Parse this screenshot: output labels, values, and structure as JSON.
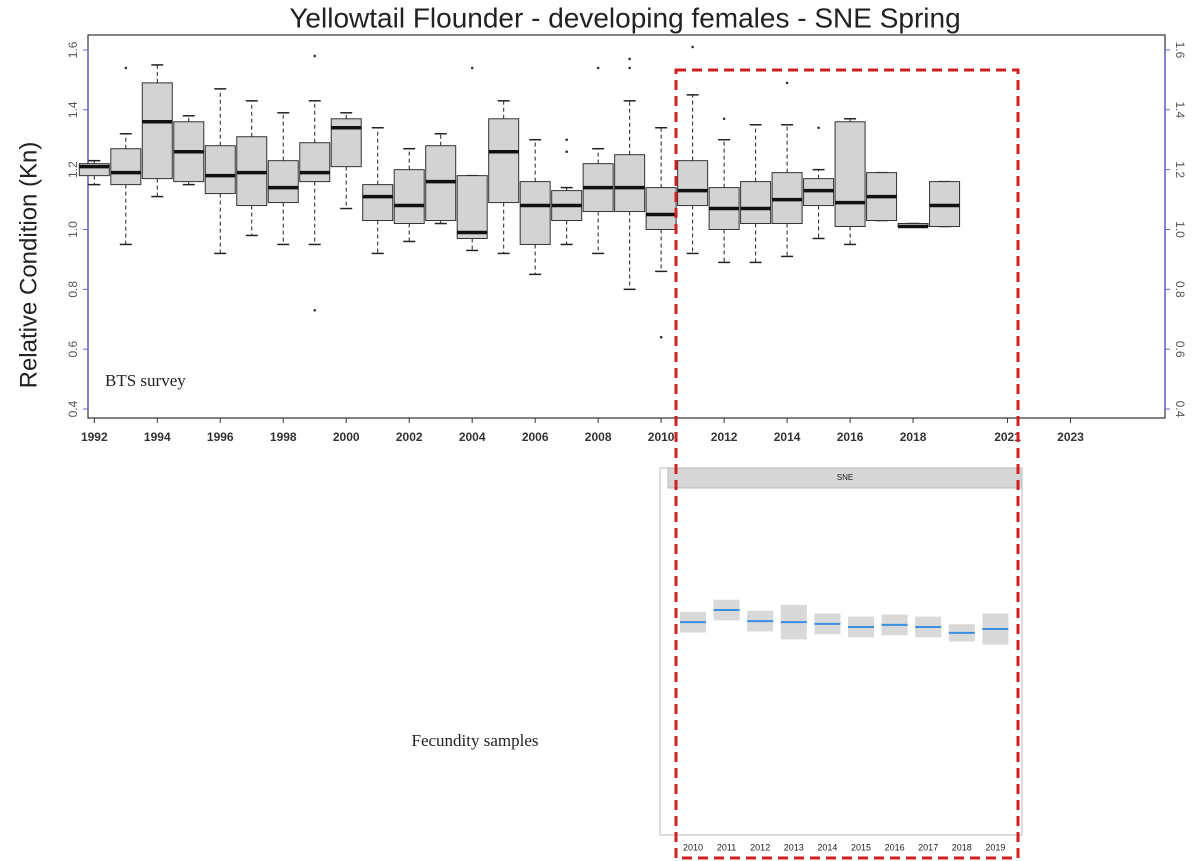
{
  "chart_data": [
    {
      "type": "box",
      "title": "Yellowtail Flounder - developing females - SNE Spring",
      "y_label": "Relative Condition (Kn)",
      "annotation": "BTS survey",
      "x": [
        1992,
        1993,
        1994,
        1995,
        1996,
        1997,
        1998,
        1999,
        2000,
        2001,
        2002,
        2003,
        2004,
        2005,
        2006,
        2007,
        2008,
        2009,
        2010,
        2011,
        2012,
        2013,
        2014,
        2015,
        2016,
        2017,
        2018,
        2019
      ],
      "boxes": [
        {
          "whislo": 1.15,
          "q1": 1.18,
          "med": 1.21,
          "q3": 1.22,
          "whishi": 1.23,
          "outliers": []
        },
        {
          "whislo": 0.95,
          "q1": 1.15,
          "med": 1.19,
          "q3": 1.27,
          "whishi": 1.32,
          "outliers": [
            1.54
          ]
        },
        {
          "whislo": 1.11,
          "q1": 1.17,
          "med": 1.36,
          "q3": 1.49,
          "whishi": 1.55,
          "outliers": []
        },
        {
          "whislo": 1.15,
          "q1": 1.16,
          "med": 1.26,
          "q3": 1.36,
          "whishi": 1.38,
          "outliers": []
        },
        {
          "whislo": 0.92,
          "q1": 1.12,
          "med": 1.18,
          "q3": 1.28,
          "whishi": 1.47,
          "outliers": []
        },
        {
          "whislo": 0.98,
          "q1": 1.08,
          "med": 1.19,
          "q3": 1.31,
          "whishi": 1.43,
          "outliers": []
        },
        {
          "whislo": 0.95,
          "q1": 1.09,
          "med": 1.14,
          "q3": 1.23,
          "whishi": 1.39,
          "outliers": []
        },
        {
          "whislo": 0.95,
          "q1": 1.16,
          "med": 1.19,
          "q3": 1.29,
          "whishi": 1.43,
          "outliers": [
            0.73,
            1.58
          ]
        },
        {
          "whislo": 1.07,
          "q1": 1.21,
          "med": 1.34,
          "q3": 1.37,
          "whishi": 1.39,
          "outliers": []
        },
        {
          "whislo": 0.92,
          "q1": 1.03,
          "med": 1.11,
          "q3": 1.15,
          "whishi": 1.34,
          "outliers": []
        },
        {
          "whislo": 0.96,
          "q1": 1.02,
          "med": 1.08,
          "q3": 1.2,
          "whishi": 1.27,
          "outliers": []
        },
        {
          "whislo": 1.02,
          "q1": 1.03,
          "med": 1.16,
          "q3": 1.28,
          "whishi": 1.32,
          "outliers": []
        },
        {
          "whislo": 0.93,
          "q1": 0.97,
          "med": 0.99,
          "q3": 1.18,
          "whishi": 1.18,
          "outliers": [
            1.54
          ]
        },
        {
          "whislo": 0.92,
          "q1": 1.09,
          "med": 1.26,
          "q3": 1.37,
          "whishi": 1.43,
          "outliers": []
        },
        {
          "whislo": 0.85,
          "q1": 0.95,
          "med": 1.08,
          "q3": 1.16,
          "whishi": 1.3,
          "outliers": []
        },
        {
          "whislo": 0.95,
          "q1": 1.03,
          "med": 1.08,
          "q3": 1.13,
          "whishi": 1.14,
          "outliers": [
            1.26,
            1.3
          ]
        },
        {
          "whislo": 0.92,
          "q1": 1.06,
          "med": 1.14,
          "q3": 1.22,
          "whishi": 1.27,
          "outliers": [
            1.54
          ]
        },
        {
          "whislo": 0.8,
          "q1": 1.06,
          "med": 1.14,
          "q3": 1.25,
          "whishi": 1.43,
          "outliers": [
            1.54,
            1.57
          ]
        },
        {
          "whislo": 0.86,
          "q1": 1.0,
          "med": 1.05,
          "q3": 1.14,
          "whishi": 1.34,
          "outliers": [
            0.64
          ]
        },
        {
          "whislo": 0.92,
          "q1": 1.08,
          "med": 1.13,
          "q3": 1.23,
          "whishi": 1.45,
          "outliers": [
            1.61
          ]
        },
        {
          "whislo": 0.89,
          "q1": 1.0,
          "med": 1.07,
          "q3": 1.14,
          "whishi": 1.3,
          "outliers": [
            1.37
          ]
        },
        {
          "whislo": 0.89,
          "q1": 1.02,
          "med": 1.07,
          "q3": 1.16,
          "whishi": 1.35,
          "outliers": []
        },
        {
          "whislo": 0.91,
          "q1": 1.02,
          "med": 1.1,
          "q3": 1.19,
          "whishi": 1.35,
          "outliers": [
            1.49
          ]
        },
        {
          "whislo": 0.97,
          "q1": 1.08,
          "med": 1.13,
          "q3": 1.17,
          "whishi": 1.2,
          "outliers": [
            1.34
          ]
        },
        {
          "whislo": 0.95,
          "q1": 1.01,
          "med": 1.09,
          "q3": 1.36,
          "whishi": 1.37,
          "outliers": []
        },
        {
          "whislo": 1.03,
          "q1": 1.03,
          "med": 1.11,
          "q3": 1.19,
          "whishi": 1.19,
          "outliers": []
        },
        {
          "whislo": 1.01,
          "q1": 1.01,
          "med": 1.01,
          "q3": 1.02,
          "whishi": 1.02,
          "outliers": []
        },
        {
          "whislo": 1.01,
          "q1": 1.01,
          "med": 1.08,
          "q3": 1.16,
          "whishi": 1.16,
          "outliers": []
        }
      ],
      "color": "#d3d3d3",
      "axis_color": "#6666cc",
      "xlim": [
        1991.8,
        2026
      ],
      "xticks": [
        1992,
        1994,
        1996,
        1998,
        2000,
        2002,
        2004,
        2006,
        2008,
        2010,
        2012,
        2014,
        2016,
        2018,
        2021,
        2023
      ],
      "ylim": [
        0.37,
        1.65
      ],
      "yticks": [
        {
          "value": 0.4,
          "label": "0.4"
        },
        {
          "value": 0.6,
          "label": "0.6"
        },
        {
          "value": 0.8,
          "label": "0.8"
        },
        {
          "value": 1.0,
          "label": "1.0"
        },
        {
          "value": 1.2,
          "label": "1.2"
        },
        {
          "value": 1.4,
          "label": "1.4"
        },
        {
          "value": 1.6,
          "label": "1.6"
        }
      ]
    },
    {
      "type": "mean_band",
      "panel_label": "SNE",
      "annotation": "Fecundity samples",
      "categories": [
        "2010",
        "2011",
        "2012",
        "2013",
        "2014",
        "2015",
        "2016",
        "2017",
        "2018",
        "2019"
      ],
      "values": [
        1.217,
        1.252,
        1.22,
        1.217,
        1.212,
        1.203,
        1.209,
        1.203,
        1.186,
        1.197
      ],
      "errors": [
        0.03,
        0.03,
        0.03,
        0.05,
        0.03,
        0.03,
        0.03,
        0.03,
        0.025,
        0.045
      ],
      "color": "#3b8fe0",
      "band_color": "#d9d9d9",
      "ylim": [
        0.6,
        1.6
      ]
    }
  ]
}
